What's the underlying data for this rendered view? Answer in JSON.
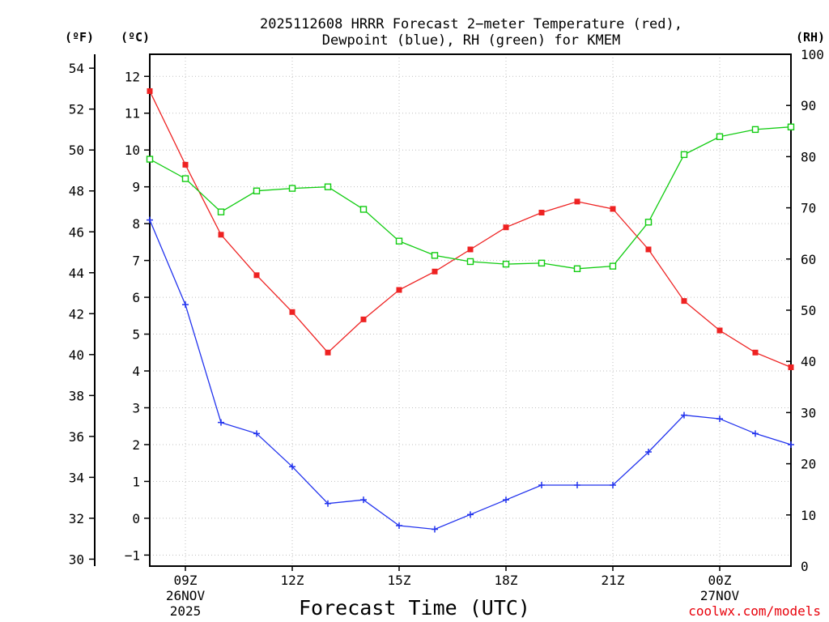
{
  "chart_data": {
    "type": "line",
    "title": "2025112608 HRRR Forecast 2-meter Temperature (red), Dewpoint (blue), RH (green) for KMEM",
    "title_lines": [
      "2025112608 HRRR Forecast 2−meter Temperature (red),",
      "Dewpoint (blue), RH (green) for KMEM"
    ],
    "xlabel": "Forecast Time (UTC)",
    "credit": "coolwx.com/models",
    "units": {
      "fahrenheit": "(ºF)",
      "celsius": "(ºC)",
      "rh": "(RH)"
    },
    "x_hours": [
      8,
      9,
      10,
      11,
      12,
      13,
      14,
      15,
      16,
      17,
      18,
      19,
      20,
      21,
      22,
      23,
      24,
      25,
      26
    ],
    "x_range": [
      8,
      26
    ],
    "x_ticks": [
      {
        "hour": 9,
        "lines": [
          "09Z",
          "26NOV",
          "2025"
        ]
      },
      {
        "hour": 12,
        "lines": [
          "12Z"
        ]
      },
      {
        "hour": 15,
        "lines": [
          "15Z"
        ]
      },
      {
        "hour": 18,
        "lines": [
          "18Z"
        ]
      },
      {
        "hour": 21,
        "lines": [
          "21Z"
        ]
      },
      {
        "hour": 24,
        "lines": [
          "00Z",
          "27NOV"
        ]
      }
    ],
    "celsius_axis": {
      "range": [
        -1.3,
        12.6
      ],
      "ticks": [
        -1,
        0,
        1,
        2,
        3,
        4,
        5,
        6,
        7,
        8,
        9,
        10,
        11,
        12
      ]
    },
    "fahrenheit_axis": {
      "range": [
        29.66,
        54.68
      ],
      "ticks": [
        30,
        32,
        34,
        36,
        38,
        40,
        42,
        44,
        46,
        48,
        50,
        52,
        54
      ]
    },
    "rh_axis": {
      "range": [
        0,
        100
      ],
      "ticks": [
        0,
        10,
        20,
        30,
        40,
        50,
        60,
        70,
        80,
        90,
        100
      ]
    },
    "series": [
      {
        "name": "Temperature",
        "unit": "C",
        "axis": "celsius",
        "color": "#ee2222",
        "marker": "filled-square",
        "values": [
          11.6,
          9.6,
          7.7,
          6.6,
          5.6,
          4.5,
          5.4,
          6.2,
          6.7,
          7.3,
          7.9,
          8.3,
          8.6,
          8.4,
          7.3,
          5.9,
          5.1,
          4.5,
          4.1
        ]
      },
      {
        "name": "Dewpoint",
        "unit": "C",
        "axis": "celsius",
        "color": "#2233ee",
        "marker": "plus",
        "values": [
          8.1,
          5.8,
          2.6,
          2.3,
          1.4,
          0.4,
          0.5,
          -0.2,
          -0.3,
          0.1,
          0.5,
          0.9,
          0.9,
          0.9,
          1.8,
          2.8,
          2.7,
          2.3,
          2.0
        ]
      },
      {
        "name": "RH",
        "unit": "%",
        "axis": "rh",
        "color": "#11cc11",
        "marker": "open-square",
        "values": [
          79.5,
          75.7,
          69.2,
          73.3,
          73.8,
          74.1,
          69.7,
          63.5,
          60.7,
          59.5,
          59.0,
          59.2,
          58.1,
          58.6,
          67.2,
          80.4,
          83.9,
          85.3,
          85.8
        ]
      }
    ]
  }
}
